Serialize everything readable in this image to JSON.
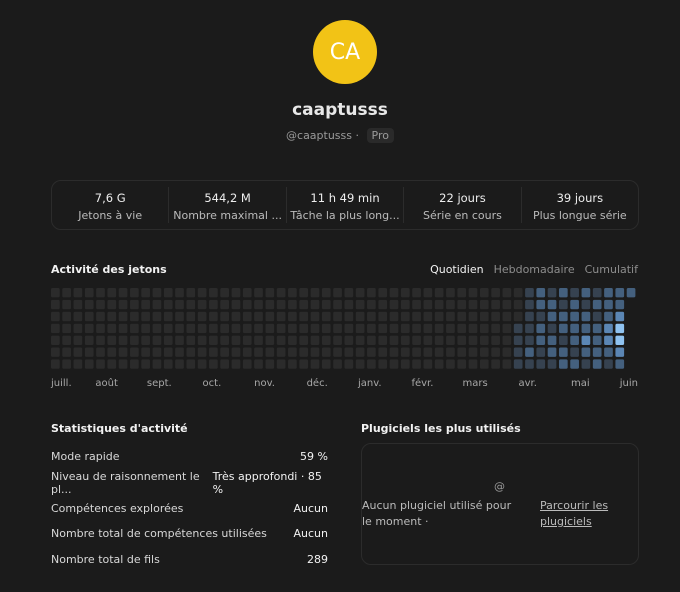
{
  "profile": {
    "initials": "CA",
    "name": "caaptusss",
    "handle": "@caaptusss",
    "separator": "·",
    "plan": "Pro"
  },
  "stats": [
    {
      "value": "7,6 G",
      "label": "Jetons à vie"
    },
    {
      "value": "544,2 M",
      "label": "Nombre maximal ..."
    },
    {
      "value": "11 h 49 min",
      "label": "Tâche la plus long..."
    },
    {
      "value": "22 jours",
      "label": "Série en cours"
    },
    {
      "value": "39 jours",
      "label": "Plus longue série"
    }
  ],
  "activity": {
    "title": "Activité des jetons",
    "tabs": [
      "Quotidien",
      "Hebdomadaire",
      "Cumulatif"
    ],
    "active_tab": 0,
    "months": [
      "juill.",
      "août",
      "sept.",
      "oct.",
      "nov.",
      "déc.",
      "janv.",
      "févr.",
      "mars",
      "avr.",
      "mai",
      "juin"
    ],
    "colors": [
      "#2b2b2b",
      "#364250",
      "#44607e",
      "#5b86b4",
      "#8fc2f0"
    ],
    "levels": [
      [
        0,
        0,
        0,
        0,
        0,
        0,
        0
      ],
      [
        0,
        0,
        0,
        0,
        0,
        0,
        0
      ],
      [
        0,
        0,
        0,
        0,
        0,
        0,
        0
      ],
      [
        0,
        0,
        0,
        0,
        0,
        0,
        0
      ],
      [
        0,
        0,
        0,
        0,
        0,
        0,
        0
      ],
      [
        0,
        0,
        0,
        0,
        0,
        0,
        0
      ],
      [
        0,
        0,
        0,
        0,
        0,
        0,
        0
      ],
      [
        0,
        0,
        0,
        0,
        0,
        0,
        0
      ],
      [
        0,
        0,
        0,
        0,
        0,
        0,
        0
      ],
      [
        0,
        0,
        0,
        0,
        0,
        0,
        0
      ],
      [
        0,
        0,
        0,
        0,
        0,
        0,
        0
      ],
      [
        0,
        0,
        0,
        0,
        0,
        0,
        0
      ],
      [
        0,
        0,
        0,
        0,
        0,
        0,
        0
      ],
      [
        0,
        0,
        0,
        0,
        0,
        0,
        0
      ],
      [
        0,
        0,
        0,
        0,
        0,
        0,
        0
      ],
      [
        0,
        0,
        0,
        0,
        0,
        0,
        0
      ],
      [
        0,
        0,
        0,
        0,
        0,
        0,
        0
      ],
      [
        0,
        0,
        0,
        0,
        0,
        0,
        0
      ],
      [
        0,
        0,
        0,
        0,
        0,
        0,
        0
      ],
      [
        0,
        0,
        0,
        0,
        0,
        0,
        0
      ],
      [
        0,
        0,
        0,
        0,
        0,
        0,
        0
      ],
      [
        0,
        0,
        0,
        0,
        0,
        0,
        0
      ],
      [
        0,
        0,
        0,
        0,
        0,
        0,
        0
      ],
      [
        0,
        0,
        0,
        0,
        0,
        0,
        0
      ],
      [
        0,
        0,
        0,
        0,
        0,
        0,
        0
      ],
      [
        0,
        0,
        0,
        0,
        0,
        0,
        0
      ],
      [
        0,
        0,
        0,
        0,
        0,
        0,
        0
      ],
      [
        0,
        0,
        0,
        0,
        0,
        0,
        0
      ],
      [
        0,
        0,
        0,
        0,
        0,
        0,
        0
      ],
      [
        0,
        0,
        0,
        0,
        0,
        0,
        0
      ],
      [
        0,
        0,
        0,
        0,
        0,
        0,
        0
      ],
      [
        0,
        0,
        0,
        0,
        0,
        0,
        0
      ],
      [
        0,
        0,
        0,
        0,
        0,
        0,
        0
      ],
      [
        0,
        0,
        0,
        0,
        0,
        0,
        0
      ],
      [
        0,
        0,
        0,
        0,
        0,
        0,
        0
      ],
      [
        0,
        0,
        0,
        0,
        0,
        0,
        0
      ],
      [
        0,
        0,
        0,
        0,
        0,
        0,
        0
      ],
      [
        0,
        0,
        0,
        0,
        0,
        0,
        0
      ],
      [
        0,
        0,
        0,
        0,
        0,
        0,
        0
      ],
      [
        0,
        0,
        0,
        0,
        0,
        0,
        0
      ],
      [
        0,
        0,
        0,
        0,
        0,
        0,
        0
      ],
      [
        0,
        0,
        0,
        1,
        1,
        1,
        1
      ],
      [
        1,
        1,
        1,
        1,
        1,
        2,
        1
      ],
      [
        2,
        2,
        1,
        2,
        2,
        1,
        1
      ],
      [
        1,
        2,
        2,
        1,
        2,
        2,
        1
      ],
      [
        2,
        1,
        2,
        2,
        1,
        2,
        2
      ],
      [
        1,
        2,
        2,
        2,
        2,
        1,
        2
      ],
      [
        2,
        1,
        2,
        2,
        3,
        2,
        1
      ],
      [
        1,
        2,
        1,
        2,
        2,
        2,
        2
      ],
      [
        2,
        2,
        2,
        3,
        3,
        2,
        1
      ],
      [
        2,
        2,
        3,
        4,
        4,
        3,
        2
      ],
      [
        2,
        null,
        null,
        null,
        null,
        null,
        null
      ]
    ]
  },
  "activity_stats": {
    "title": "Statistiques d'activité",
    "rows": [
      [
        "Mode rapide",
        "59 %"
      ],
      [
        "Niveau de raisonnement le pl...",
        "Très approfondi · 85 %"
      ],
      [
        "Compétences explorées",
        "Aucun"
      ],
      [
        "Nombre total de compétences utilisées",
        "Aucun"
      ],
      [
        "Nombre total de fils",
        "289"
      ]
    ]
  },
  "plugins": {
    "title": "Plugiciels les plus utilisés",
    "icon": "@",
    "empty_text": "Aucun plugiciel utilisé pour le moment ·",
    "link": "Parcourir les plugiciels"
  }
}
